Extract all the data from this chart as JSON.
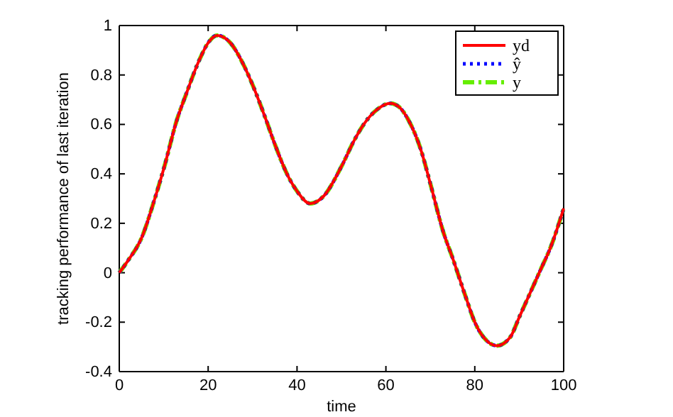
{
  "chart_data": {
    "type": "line",
    "xlabel": "time",
    "ylabel": "tracking performance of last iteration",
    "x": [
      0,
      2,
      5,
      8,
      10,
      13,
      15,
      18,
      20,
      22,
      25,
      28,
      30,
      33,
      35,
      38,
      40,
      43,
      46,
      50,
      53,
      55,
      58,
      61,
      63,
      65,
      68,
      70,
      73,
      75,
      78,
      80,
      83,
      85,
      88,
      90,
      92,
      95,
      97,
      100
    ],
    "xlim": [
      0,
      100
    ],
    "xticks": [
      0,
      20,
      40,
      60,
      80,
      100
    ],
    "ylim": [
      -0.4,
      1
    ],
    "yticks": [
      -0.4,
      -0.2,
      0,
      0.2,
      0.4,
      0.6,
      0.8,
      1
    ],
    "legend": "top right",
    "series": [
      {
        "name": "yd",
        "color": "#ff0000",
        "line_style": "solid",
        "values": [
          0,
          0.05,
          0.14,
          0.3,
          0.42,
          0.62,
          0.72,
          0.86,
          0.93,
          0.96,
          0.93,
          0.84,
          0.76,
          0.62,
          0.52,
          0.39,
          0.33,
          0.28,
          0.31,
          0.43,
          0.54,
          0.6,
          0.66,
          0.685,
          0.67,
          0.62,
          0.49,
          0.36,
          0.16,
          0.06,
          -0.1,
          -0.2,
          -0.28,
          -0.295,
          -0.26,
          -0.18,
          -0.1,
          0.02,
          0.1,
          0.26
        ]
      },
      {
        "name": "ŷ",
        "color": "#0000ff",
        "line_style": "dotted",
        "values": [
          0,
          0.05,
          0.14,
          0.3,
          0.42,
          0.62,
          0.72,
          0.86,
          0.93,
          0.96,
          0.93,
          0.84,
          0.76,
          0.62,
          0.52,
          0.39,
          0.33,
          0.28,
          0.31,
          0.43,
          0.54,
          0.6,
          0.66,
          0.685,
          0.67,
          0.62,
          0.49,
          0.36,
          0.16,
          0.06,
          -0.1,
          -0.2,
          -0.28,
          -0.295,
          -0.26,
          -0.18,
          -0.1,
          0.02,
          0.1,
          0.26
        ]
      },
      {
        "name": "y",
        "color": "#66ee00",
        "line_style": "dashdot",
        "values": [
          0,
          0.05,
          0.14,
          0.3,
          0.42,
          0.62,
          0.72,
          0.86,
          0.93,
          0.96,
          0.93,
          0.84,
          0.76,
          0.62,
          0.52,
          0.39,
          0.33,
          0.28,
          0.31,
          0.43,
          0.54,
          0.6,
          0.66,
          0.685,
          0.67,
          0.62,
          0.49,
          0.36,
          0.16,
          0.06,
          -0.1,
          -0.2,
          -0.28,
          -0.295,
          -0.26,
          -0.18,
          -0.1,
          0.02,
          0.1,
          0.26
        ]
      }
    ]
  }
}
